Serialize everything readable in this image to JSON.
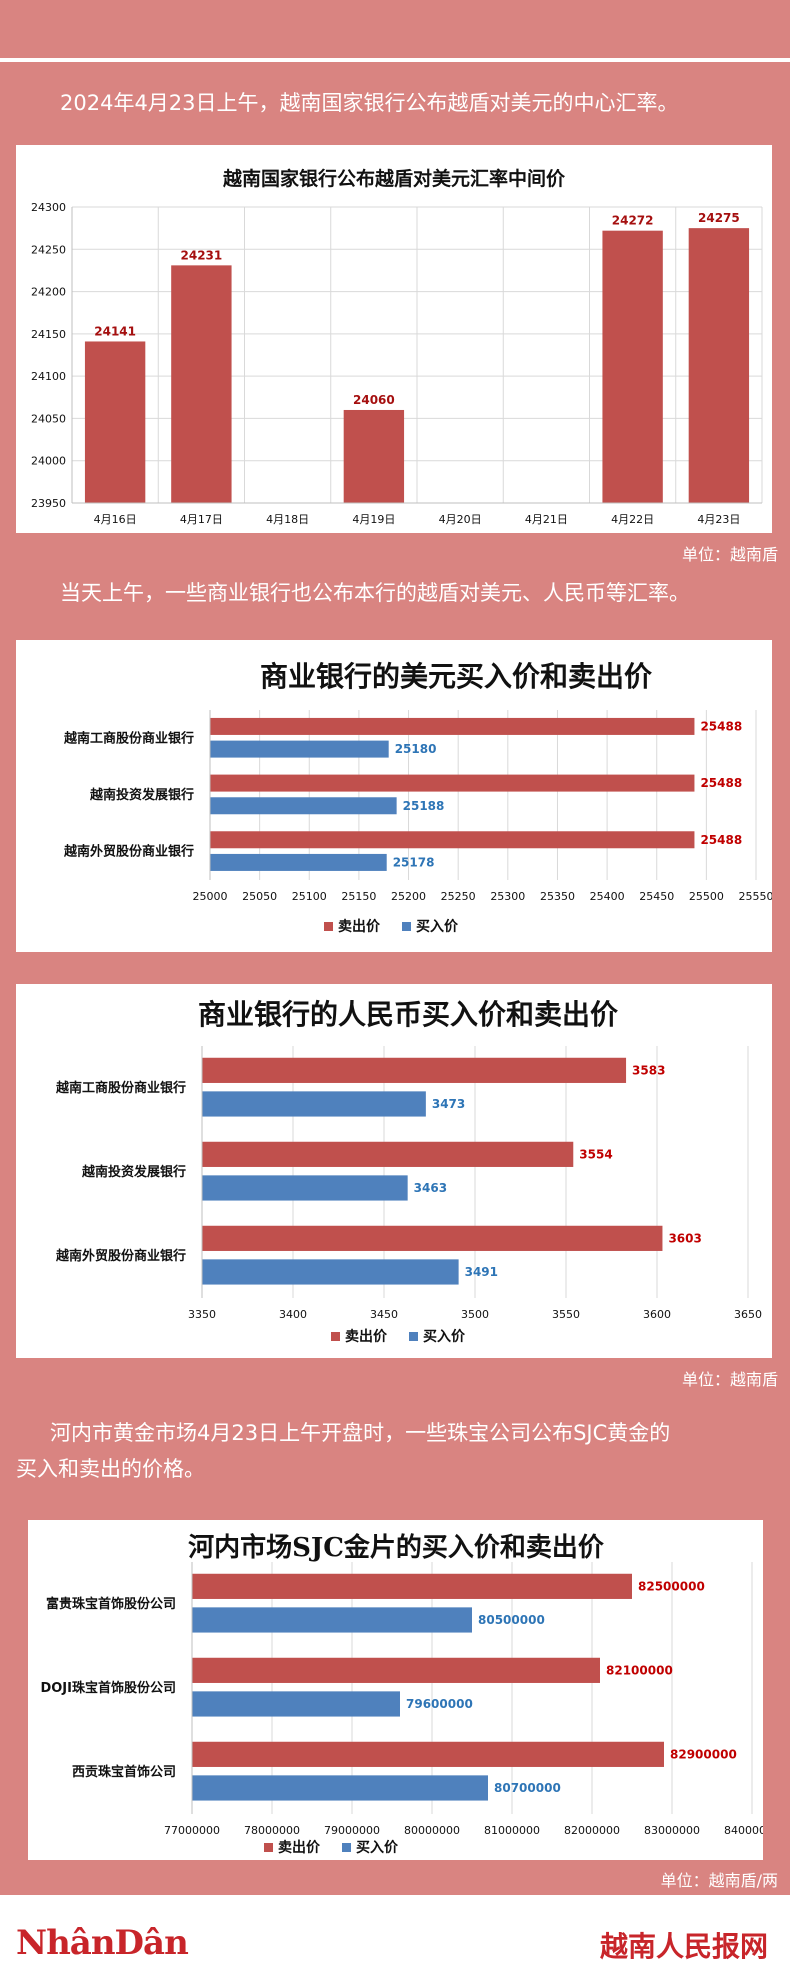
{
  "intro": {
    "p1": "2024年4月23日上午，越南国家银行公布越盾对美元的中心汇率。",
    "p2": "当天上午，一些商业银行也公布本行的越盾对美元、人民币等汇率。",
    "p3a": "河内市黄金市场4月23日上午开盘时，一些珠宝公司公布SJC黄金的",
    "p3b": "买入和卖出的价格。"
  },
  "units": {
    "u1": "单位：越南盾",
    "u2": "单位：越南盾",
    "u3": "单位：越南盾/两"
  },
  "footer": {
    "logo_left": "NhânDân",
    "logo_right": "越南人民报网"
  },
  "colors": {
    "sell": "#c0504d",
    "buy": "#4f81bd",
    "background": "#d98481"
  },
  "chart_data": [
    {
      "type": "bar",
      "title": "越南国家银行公布越盾对美元汇率中间价",
      "categories": [
        "4月16日",
        "4月17日",
        "4月18日",
        "4月19日",
        "4月20日",
        "4月21日",
        "4月22日",
        "4月23日"
      ],
      "values": [
        24141,
        24231,
        null,
        24060,
        null,
        null,
        24272,
        24275
      ],
      "ylim": [
        23950,
        24300
      ],
      "yticks": [
        23950,
        24000,
        24050,
        24100,
        24150,
        24200,
        24250,
        24300
      ],
      "grid": true
    },
    {
      "type": "bar",
      "orientation": "horizontal",
      "title": "商业银行的美元买入价和卖出价",
      "categories": [
        "越南工商股份商业银行",
        "越南投资发展银行",
        "越南外贸股份商业银行"
      ],
      "series": [
        {
          "name": "卖出价",
          "values": [
            25488,
            25488,
            25488
          ]
        },
        {
          "name": "买入价",
          "values": [
            25180,
            25188,
            25178
          ]
        }
      ],
      "xlim": [
        25000,
        25550
      ],
      "xticks": [
        25000,
        25050,
        25100,
        25150,
        25200,
        25250,
        25300,
        25350,
        25400,
        25450,
        25500,
        25550
      ],
      "legend": "bottom",
      "grid": true
    },
    {
      "type": "bar",
      "orientation": "horizontal",
      "title": "商业银行的人民币买入价和卖出价",
      "categories": [
        "越南工商股份商业银行",
        "越南投资发展银行",
        "越南外贸股份商业银行"
      ],
      "series": [
        {
          "name": "卖出价",
          "values": [
            3583,
            3554,
            3603
          ]
        },
        {
          "name": "买入价",
          "values": [
            3473,
            3463,
            3491
          ]
        }
      ],
      "xlim": [
        3350,
        3650
      ],
      "xticks": [
        3350,
        3400,
        3450,
        3500,
        3550,
        3600,
        3650
      ],
      "legend": "bottom",
      "grid": true
    },
    {
      "type": "bar",
      "orientation": "horizontal",
      "title": "河内市场SJC金片的买入价和卖出价",
      "categories": [
        "富贵珠宝首饰股份公司",
        "DOJI珠宝首饰股份公司",
        "西贡珠宝首饰公司"
      ],
      "series": [
        {
          "name": "卖出价",
          "values": [
            82500000,
            82100000,
            82900000
          ]
        },
        {
          "name": "买入价",
          "values": [
            80500000,
            79600000,
            80700000
          ]
        }
      ],
      "xlim": [
        77000000,
        84000000
      ],
      "xticks": [
        77000000,
        78000000,
        79000000,
        80000000,
        81000000,
        82000000,
        83000000,
        84000000
      ],
      "legend": "bottom",
      "grid": true
    }
  ]
}
